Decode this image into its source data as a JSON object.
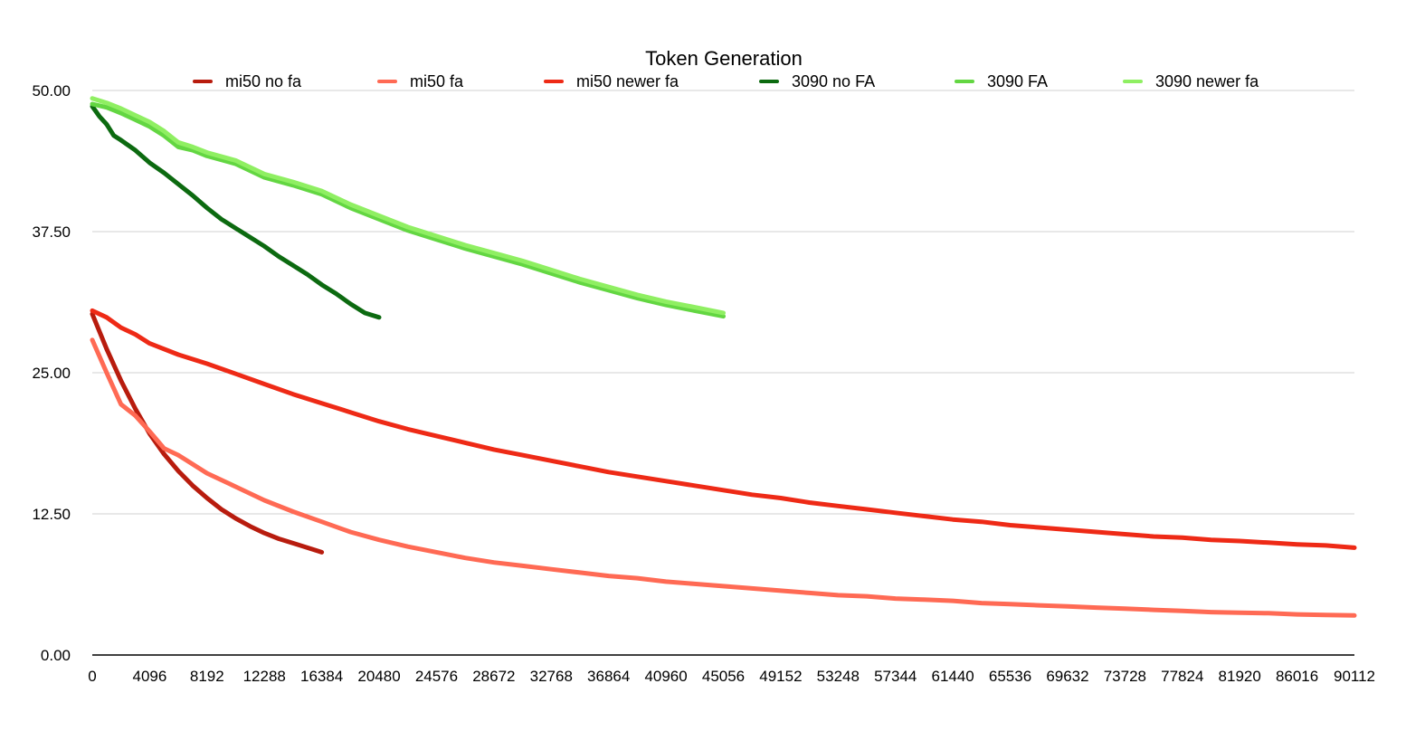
{
  "chart_data": {
    "type": "line",
    "title": "Token Generation",
    "xlabel": "",
    "ylabel": "",
    "xlim": [
      0,
      90112
    ],
    "ylim": [
      0,
      50
    ],
    "x_ticks": [
      0,
      4096,
      8192,
      12288,
      16384,
      20480,
      24576,
      28672,
      32768,
      36864,
      40960,
      45056,
      49152,
      53248,
      57344,
      61440,
      65536,
      69632,
      73728,
      77824,
      81920,
      86016,
      90112
    ],
    "y_ticks": [
      "0.00",
      "12.50",
      "25.00",
      "37.50",
      "50.00"
    ],
    "grid": true,
    "legend_position": "top",
    "series": [
      {
        "name": "mi50 no fa",
        "color": "#b81c0e",
        "x": [
          0,
          1024,
          2048,
          3072,
          4096,
          5120,
          6144,
          7168,
          8192,
          9216,
          10240,
          11264,
          12288,
          13312,
          14336,
          15360,
          16384
        ],
        "values": [
          30.2,
          27.1,
          24.3,
          21.8,
          19.6,
          17.8,
          16.3,
          15.0,
          13.9,
          12.9,
          12.1,
          11.4,
          10.8,
          10.3,
          9.9,
          9.5,
          9.1
        ]
      },
      {
        "name": "mi50 fa",
        "color": "#ff6a54",
        "x": [
          0,
          1024,
          2048,
          3072,
          4096,
          5120,
          6144,
          7168,
          8192,
          10240,
          12288,
          14336,
          16384,
          18432,
          20480,
          22528,
          24576,
          26624,
          28672,
          30720,
          32768,
          34816,
          36864,
          38912,
          40960,
          43008,
          45056,
          47104,
          49152,
          51200,
          53248,
          55296,
          57344,
          59392,
          61440,
          63488,
          65536,
          67584,
          69632,
          71680,
          73728,
          75776,
          77824,
          79872,
          81920,
          83968,
          86016,
          88064,
          90112
        ],
        "values": [
          27.9,
          25.0,
          22.2,
          21.2,
          19.8,
          18.3,
          17.7,
          16.9,
          16.1,
          14.9,
          13.7,
          12.7,
          11.8,
          10.9,
          10.2,
          9.6,
          9.1,
          8.6,
          8.2,
          7.9,
          7.6,
          7.3,
          7.0,
          6.8,
          6.5,
          6.3,
          6.1,
          5.9,
          5.7,
          5.5,
          5.3,
          5.2,
          5.0,
          4.9,
          4.8,
          4.6,
          4.5,
          4.4,
          4.3,
          4.2,
          4.1,
          4.0,
          3.9,
          3.8,
          3.75,
          3.7,
          3.6,
          3.55,
          3.5
        ]
      },
      {
        "name": "mi50 newer fa",
        "color": "#ee2a16",
        "x": [
          0,
          1024,
          2048,
          3072,
          4096,
          6144,
          8192,
          10240,
          12288,
          14336,
          16384,
          18432,
          20480,
          22528,
          24576,
          26624,
          28672,
          30720,
          32768,
          34816,
          36864,
          38912,
          40960,
          43008,
          45056,
          47104,
          49152,
          51200,
          53248,
          55296,
          57344,
          59392,
          61440,
          63488,
          65536,
          67584,
          69632,
          71680,
          73728,
          75776,
          77824,
          79872,
          81920,
          83968,
          86016,
          88064,
          90112
        ],
        "values": [
          30.5,
          29.9,
          29.0,
          28.4,
          27.6,
          26.6,
          25.8,
          24.9,
          24.0,
          23.1,
          22.3,
          21.5,
          20.7,
          20.0,
          19.4,
          18.8,
          18.2,
          17.7,
          17.2,
          16.7,
          16.2,
          15.8,
          15.4,
          15.0,
          14.6,
          14.2,
          13.9,
          13.5,
          13.2,
          12.9,
          12.6,
          12.3,
          12.0,
          11.8,
          11.5,
          11.3,
          11.1,
          10.9,
          10.7,
          10.5,
          10.4,
          10.2,
          10.1,
          9.95,
          9.8,
          9.7,
          9.5
        ]
      },
      {
        "name": "3090 no FA",
        "color": "#0c6a10",
        "x": [
          0,
          512,
          1024,
          1536,
          2048,
          3072,
          4096,
          5120,
          6144,
          7168,
          8192,
          9216,
          10240,
          11264,
          12288,
          13312,
          14336,
          15360,
          16384,
          17408,
          18432,
          19456,
          20480
        ],
        "values": [
          48.6,
          47.7,
          47.0,
          46.0,
          45.6,
          44.7,
          43.6,
          42.7,
          41.7,
          40.7,
          39.6,
          38.6,
          37.8,
          37.0,
          36.2,
          35.3,
          34.5,
          33.7,
          32.8,
          32.0,
          31.1,
          30.3,
          29.9
        ]
      },
      {
        "name": "3090 FA",
        "color": "#63d642",
        "x": [
          0,
          1024,
          2048,
          3072,
          4096,
          5120,
          6144,
          7168,
          8192,
          10240,
          12288,
          14336,
          16384,
          18432,
          20480,
          22528,
          24576,
          26624,
          28672,
          30720,
          32768,
          34816,
          36864,
          38912,
          40960,
          43008,
          45056
        ],
        "values": [
          48.8,
          48.5,
          48.0,
          47.4,
          46.8,
          46.0,
          45.0,
          44.7,
          44.2,
          43.5,
          42.3,
          41.6,
          40.8,
          39.6,
          38.6,
          37.6,
          36.8,
          36.0,
          35.3,
          34.6,
          33.8,
          33.0,
          32.3,
          31.6,
          31.0,
          30.5,
          30.0
        ]
      },
      {
        "name": "3090 newer fa",
        "color": "#8fef62",
        "x": [
          0,
          1024,
          2048,
          3072,
          4096,
          5120,
          6144,
          7168,
          8192,
          10240,
          12288,
          14336,
          16384,
          18432,
          20480,
          22528,
          24576,
          26624,
          28672,
          30720,
          32768,
          34816,
          36864,
          38912,
          40960,
          43008,
          45056
        ],
        "values": [
          49.3,
          48.9,
          48.4,
          47.8,
          47.2,
          46.4,
          45.4,
          45.0,
          44.5,
          43.8,
          42.6,
          41.9,
          41.1,
          39.9,
          38.9,
          37.9,
          37.1,
          36.3,
          35.6,
          34.9,
          34.1,
          33.3,
          32.6,
          31.9,
          31.3,
          30.8,
          30.3
        ]
      }
    ]
  }
}
